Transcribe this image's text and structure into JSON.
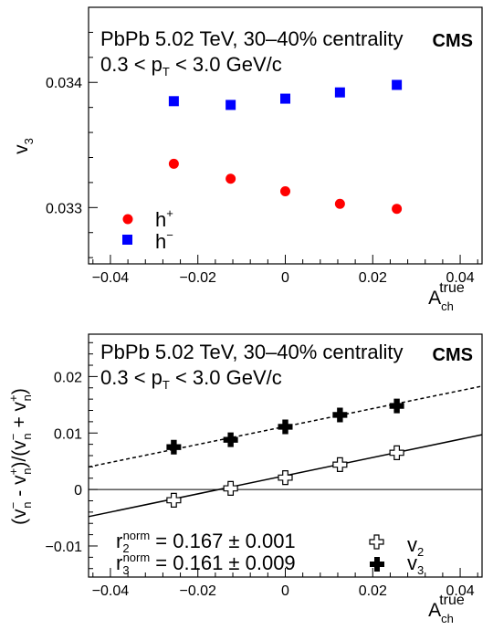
{
  "chart_data": [
    {
      "type": "scatter",
      "xlabel": "A",
      "xlabel_super": "true",
      "xlabel_sub": "ch",
      "ylabel": "v",
      "ylabel_sub": "3",
      "xlim": [
        -0.045,
        0.045
      ],
      "ylim": [
        0.03255,
        0.0346
      ],
      "x_ticks": [
        "−0.04",
        "−0.02",
        "0",
        "0.02",
        "0.04"
      ],
      "y_ticks": [
        "0.033",
        "0.034"
      ],
      "annotation": {
        "line1": "PbPb 5.02 TeV, 30–40% centrality",
        "line2_a": "0.3 < p",
        "line2_sub": "T",
        "line2_b": " < 3.0 GeV/c",
        "experiment": "CMS"
      },
      "legend_position": "bottom-left",
      "series": [
        {
          "name": "h",
          "name_super": "+",
          "marker": "circle",
          "color": "#ff0000",
          "x": [
            -0.0255,
            -0.0125,
            0.0,
            0.0125,
            0.0255
          ],
          "y": [
            0.03335,
            0.03323,
            0.03313,
            0.03303,
            0.03299
          ]
        },
        {
          "name": "h",
          "name_super": "−",
          "marker": "square",
          "color": "#0000ff",
          "x": [
            -0.0255,
            -0.0125,
            0.0,
            0.0125,
            0.0255
          ],
          "y": [
            0.03385,
            0.03382,
            0.03387,
            0.03392,
            0.03398
          ]
        }
      ]
    },
    {
      "type": "scatter",
      "xlabel": "A",
      "xlabel_super": "true",
      "xlabel_sub": "ch",
      "ylabel": "(v − v )/(v + v )",
      "ylabel_parts": [
        "(v",
        "−",
        "n",
        " - v",
        "+",
        "n",
        ")/(v",
        "−",
        "n",
        " + v",
        "+",
        "n",
        ")"
      ],
      "xlim": [
        -0.045,
        0.045
      ],
      "ylim": [
        -0.0155,
        0.0275
      ],
      "x_ticks": [
        "−0.04",
        "−0.02",
        "0",
        "0.02",
        "0.04"
      ],
      "y_ticks": [
        "−0.01",
        "0",
        "0.01",
        "0.02"
      ],
      "annotation": {
        "line1": "PbPb 5.02 TeV, 30–40% centrality",
        "line2_a": "0.3 < p",
        "line2_sub": "T",
        "line2_b": " < 3.0 GeV/c",
        "experiment": "CMS"
      },
      "fit_labels": [
        {
          "a": "r",
          "sub": "2",
          "sup": "norm",
          "b": " = 0.167 ± 0.001"
        },
        {
          "a": "r",
          "sub": "3",
          "sup": "norm",
          "b": " = 0.161 ± 0.009"
        }
      ],
      "legend_position": "bottom-right",
      "series": [
        {
          "name": "v",
          "name_sub": "2",
          "marker": "open-cross",
          "color": "#000000",
          "x": [
            -0.0255,
            -0.0125,
            0.0,
            0.0125,
            0.0255
          ],
          "y": [
            -0.0019,
            0.0002,
            0.0021,
            0.0044,
            0.0065
          ],
          "fit": {
            "style": "solid",
            "y_at_xmin": -0.0048,
            "y_at_xmax": 0.0097
          }
        },
        {
          "name": "v",
          "name_sub": "3",
          "marker": "filled-cross",
          "color": "#000000",
          "x": [
            -0.0255,
            -0.0125,
            0.0,
            0.0125,
            0.0255
          ],
          "y": [
            0.0075,
            0.0088,
            0.0111,
            0.0132,
            0.0148
          ],
          "fit": {
            "style": "dashed",
            "y_at_xmin": 0.004,
            "y_at_xmax": 0.0183
          }
        }
      ]
    }
  ]
}
